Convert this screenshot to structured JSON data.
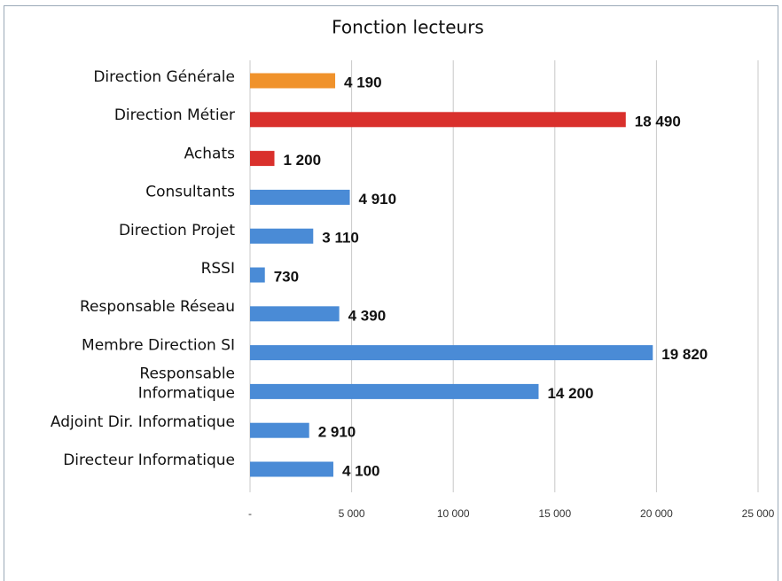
{
  "chart_data": {
    "type": "barh",
    "title": "Fonction lecteurs",
    "categories": [
      "Direction Générale",
      "Direction Métier",
      "Achats",
      "Consultants",
      "Direction Projet",
      "RSSI",
      "Responsable Réseau",
      "Membre Direction SI",
      "Responsable\nInformatique",
      "Adjoint Dir. Informatique",
      "Directeur Informatique"
    ],
    "values": [
      4190,
      18490,
      1200,
      4910,
      3110,
      730,
      4390,
      19820,
      14200,
      2910,
      4100
    ],
    "value_labels": [
      "4 190",
      "18 490",
      "1 200",
      "4 910",
      "3 110",
      "730",
      "4 390",
      "19 820",
      "14 200",
      "2 910",
      "4 100"
    ],
    "colors": [
      "#f0922b",
      "#d9302c",
      "#d9302c",
      "#4a8bd6",
      "#4a8bd6",
      "#4a8bd6",
      "#4a8bd6",
      "#4a8bd6",
      "#4a8bd6",
      "#4a8bd6",
      "#4a8bd6"
    ],
    "xlim": [
      0,
      25000
    ],
    "xticks": [
      {
        "value": 0,
        "label": "-"
      },
      {
        "value": 5000,
        "label": "5 000"
      },
      {
        "value": 10000,
        "label": "10 000"
      },
      {
        "value": 15000,
        "label": "15 000"
      },
      {
        "value": 20000,
        "label": "20 000"
      },
      {
        "value": 25000,
        "label": "25 000"
      }
    ],
    "grid": true
  }
}
